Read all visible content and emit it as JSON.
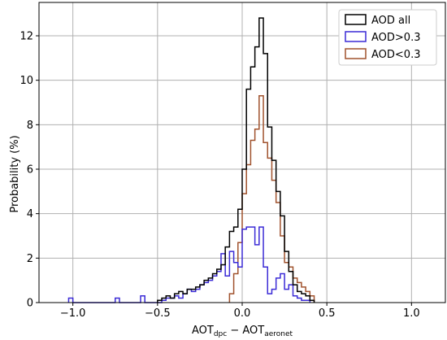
{
  "chart_data": {
    "type": "bar",
    "histogram": true,
    "xlabel_main": "AOT",
    "xlabel_sub1": "dpc",
    "xlabel_mid": " − AOT",
    "xlabel_sub2": "aeronet",
    "ylabel": "Probability (%)",
    "xlim": [
      -1.2,
      1.2
    ],
    "ylim": [
      0,
      13.5
    ],
    "x_ticks": [
      -1.0,
      -0.5,
      0.0,
      0.5,
      1.0
    ],
    "x_tick_labels": [
      "−1.0",
      "−0.5",
      "0.0",
      "0.5",
      "1.0"
    ],
    "y_ticks": [
      0,
      2,
      4,
      6,
      8,
      10,
      12
    ],
    "y_tick_labels": [
      "0",
      "2",
      "4",
      "6",
      "8",
      "10",
      "12"
    ],
    "grid": true,
    "legend_position": "top-right",
    "series": [
      {
        "name": "AOD all",
        "color": "#000000",
        "edges": [
          -0.5,
          -0.475,
          -0.45,
          -0.425,
          -0.4,
          -0.375,
          -0.35,
          -0.325,
          -0.3,
          -0.275,
          -0.25,
          -0.225,
          -0.2,
          -0.175,
          -0.15,
          -0.125,
          -0.1,
          -0.075,
          -0.05,
          -0.025,
          0.0,
          0.025,
          0.05,
          0.075,
          0.1,
          0.125,
          0.15,
          0.175,
          0.2,
          0.225,
          0.25,
          0.275,
          0.3,
          0.325,
          0.35,
          0.375,
          0.4,
          0.425
        ],
        "values": [
          0.1,
          0.2,
          0.3,
          0.2,
          0.4,
          0.5,
          0.4,
          0.6,
          0.6,
          0.7,
          0.8,
          1.0,
          1.1,
          1.3,
          1.5,
          1.7,
          2.5,
          3.2,
          3.4,
          4.2,
          6.0,
          9.6,
          10.6,
          11.5,
          12.8,
          11.2,
          7.9,
          6.4,
          5.0,
          3.9,
          2.3,
          1.4,
          0.8,
          0.5,
          0.4,
          0.3,
          0.1
        ]
      },
      {
        "name": "AOD>0.3",
        "color": "#3b2bd6",
        "edges": [
          -1.025,
          -1.0,
          -0.975,
          -0.95,
          -0.925,
          -0.9,
          -0.875,
          -0.85,
          -0.825,
          -0.8,
          -0.775,
          -0.75,
          -0.725,
          -0.7,
          -0.675,
          -0.65,
          -0.625,
          -0.6,
          -0.575,
          -0.55,
          -0.525,
          -0.5,
          -0.475,
          -0.45,
          -0.425,
          -0.4,
          -0.375,
          -0.35,
          -0.325,
          -0.3,
          -0.275,
          -0.25,
          -0.225,
          -0.2,
          -0.175,
          -0.15,
          -0.125,
          -0.1,
          -0.075,
          -0.05,
          -0.025,
          0.0,
          0.025,
          0.05,
          0.075,
          0.1,
          0.125,
          0.15,
          0.175,
          0.2,
          0.225,
          0.25,
          0.275,
          0.3,
          0.325,
          0.35,
          0.375,
          0.4
        ],
        "values": [
          0.2,
          0.0,
          0.0,
          0.0,
          0.0,
          0.0,
          0.0,
          0.0,
          0.0,
          0.0,
          0.0,
          0.2,
          0.0,
          0.0,
          0.0,
          0.0,
          0.0,
          0.3,
          0.0,
          0.0,
          0.0,
          0.0,
          0.1,
          0.2,
          0.2,
          0.3,
          0.2,
          0.4,
          0.6,
          0.5,
          0.6,
          0.8,
          0.9,
          1.0,
          1.2,
          1.4,
          2.2,
          1.2,
          2.3,
          1.8,
          1.6,
          3.3,
          3.4,
          3.4,
          2.6,
          3.4,
          1.6,
          0.4,
          0.6,
          1.1,
          1.3,
          0.6,
          0.8,
          0.3,
          0.2,
          0.1,
          0.1
        ]
      },
      {
        "name": "AOD<0.3",
        "color": "#a0522d",
        "edges": [
          -0.075,
          -0.05,
          -0.025,
          0.0,
          0.025,
          0.05,
          0.075,
          0.1,
          0.125,
          0.15,
          0.175,
          0.2,
          0.225,
          0.25,
          0.275,
          0.3,
          0.325,
          0.35,
          0.375,
          0.4,
          0.425
        ],
        "values": [
          0.4,
          1.3,
          2.7,
          4.9,
          6.2,
          7.3,
          7.8,
          9.3,
          7.2,
          6.5,
          5.5,
          4.5,
          3.0,
          1.8,
          1.6,
          1.1,
          0.9,
          0.7,
          0.5,
          0.3
        ]
      }
    ]
  }
}
